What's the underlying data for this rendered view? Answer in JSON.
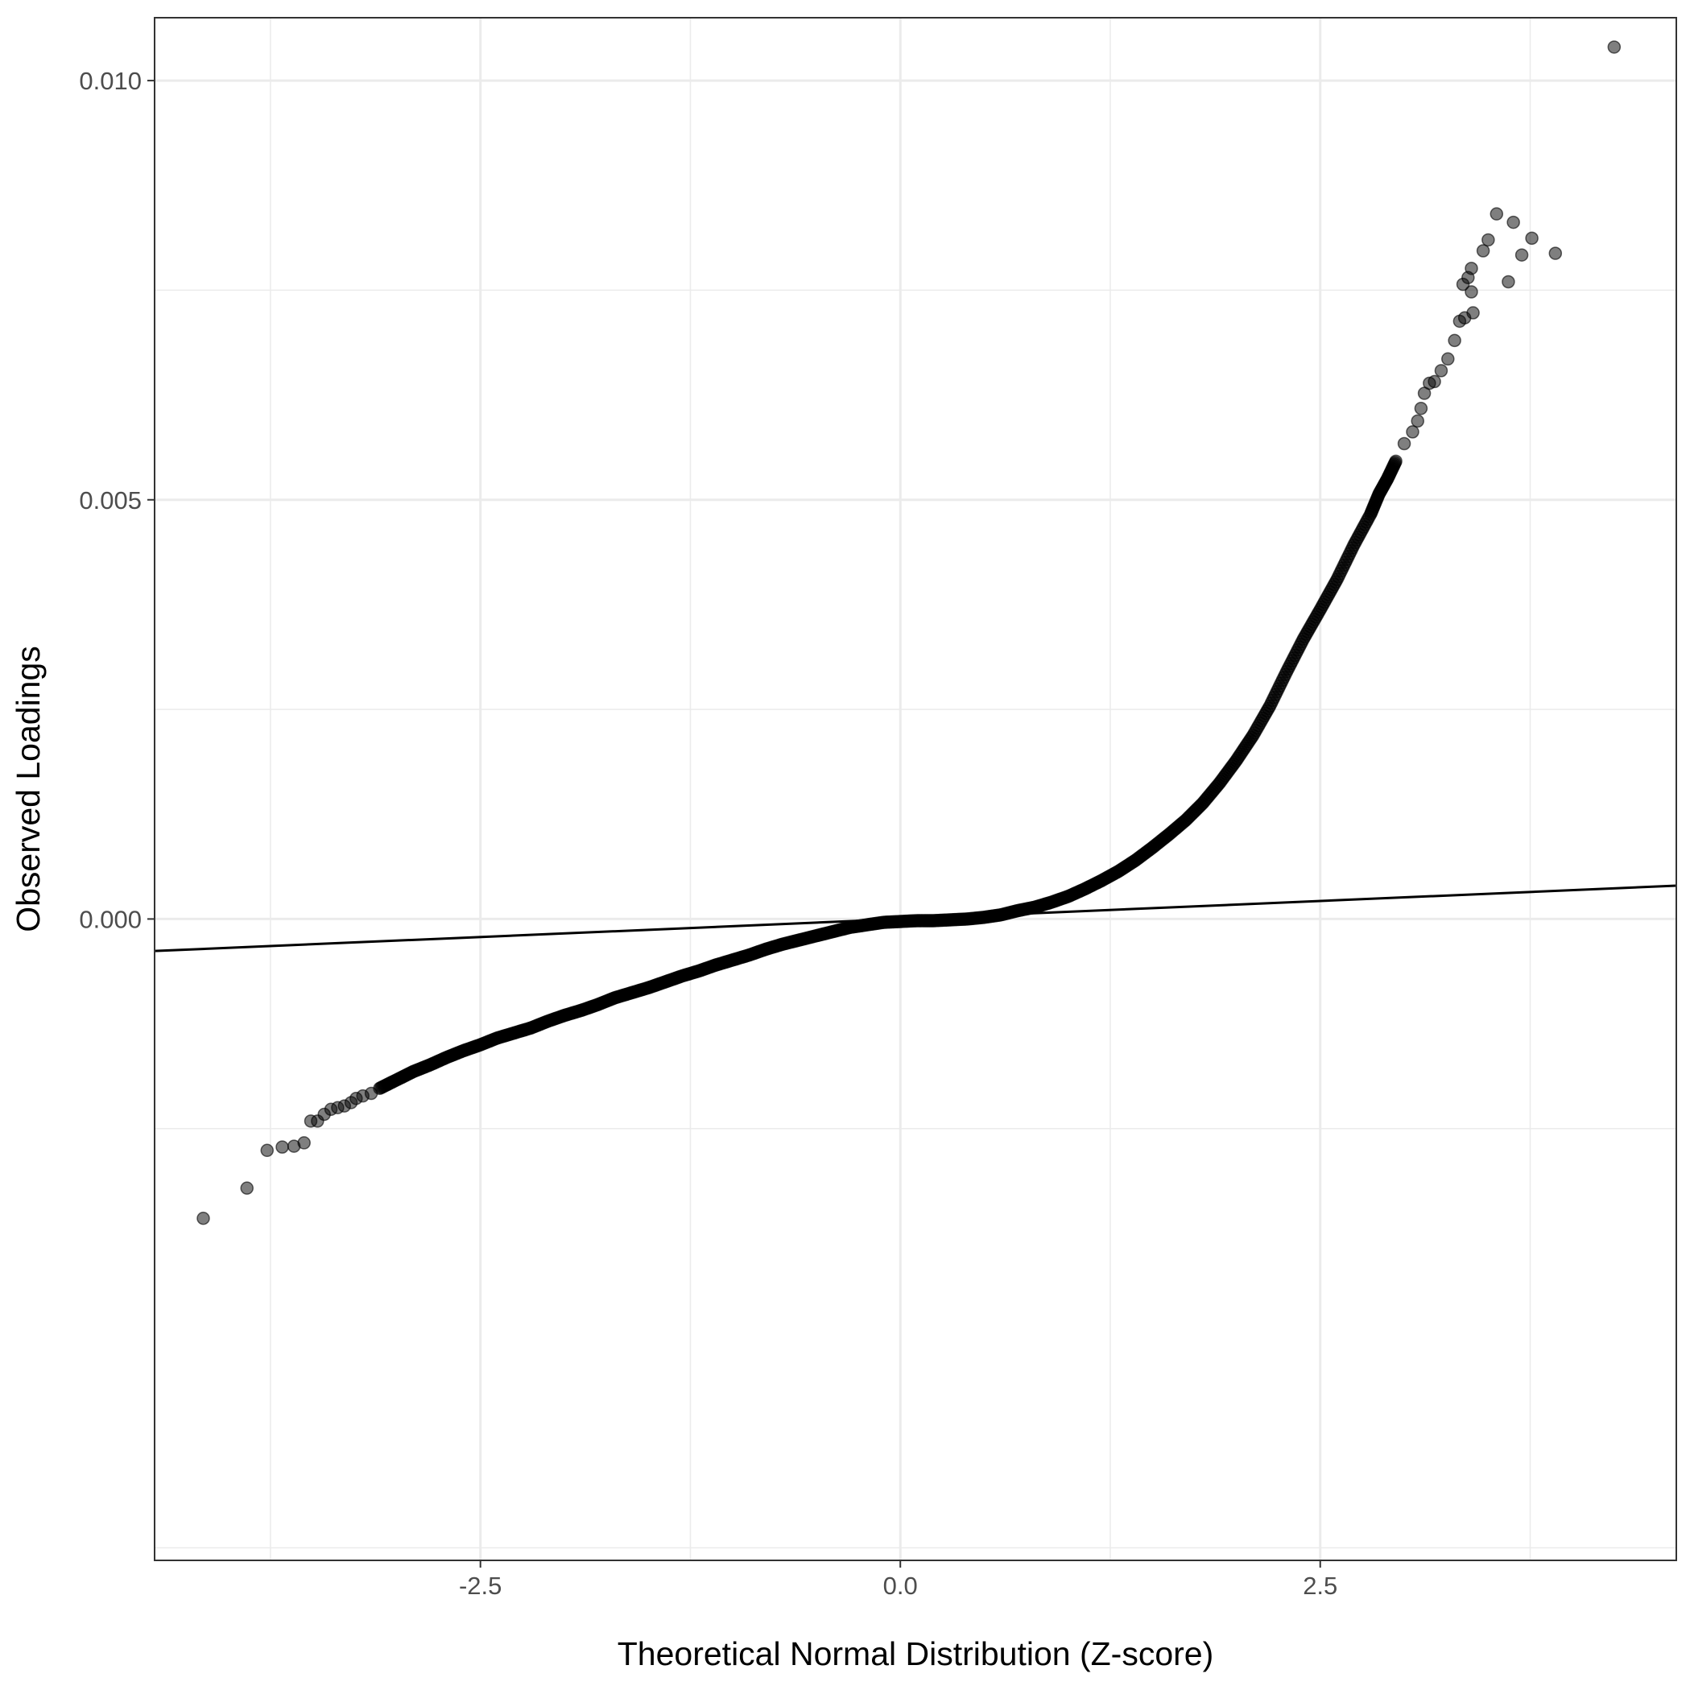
{
  "chart_data": {
    "type": "scatter",
    "title": "",
    "xlabel": "Theoretical Normal Distribution (Z-score)",
    "ylabel": "Observed Loadings",
    "xlim": [
      -4.44,
      4.62
    ],
    "ylim": [
      -0.00765,
      0.01075
    ],
    "x_ticks": [
      {
        "value": -2.5,
        "label": "-2.5"
      },
      {
        "value": 0.0,
        "label": "0.0"
      },
      {
        "value": 2.5,
        "label": "2.5"
      }
    ],
    "y_ticks": [
      {
        "value": 0.0,
        "label": "0.000"
      },
      {
        "value": 0.005,
        "label": "0.005"
      },
      {
        "value": 0.01,
        "label": "0.010"
      }
    ],
    "grid": true,
    "legend": "none",
    "reference_line": {
      "intercept": 0.0,
      "slope": 8.6e-05
    },
    "colors": {
      "points": "#000000",
      "point_opacity": 0.5,
      "line": "#000000",
      "grid": "#ebebeb",
      "panel_border": "#333333"
    },
    "series": [
      {
        "points": [
          [
            -4.15,
            -0.00357
          ],
          [
            -3.89,
            -0.00321
          ],
          [
            -3.77,
            -0.00276
          ],
          [
            -3.68,
            -0.00272
          ],
          [
            -3.61,
            -0.00271
          ],
          [
            -3.55,
            -0.00267
          ],
          [
            -3.51,
            -0.00241
          ],
          [
            -3.47,
            -0.00241
          ],
          [
            -3.43,
            -0.00233
          ],
          [
            -3.39,
            -0.00227
          ],
          [
            -3.35,
            -0.00225
          ],
          [
            -3.31,
            -0.00223
          ],
          [
            -3.27,
            -0.00219
          ],
          [
            -3.24,
            -0.00214
          ],
          [
            -3.2,
            -0.00211
          ],
          [
            -3.15,
            -0.00208
          ],
          [
            -3.1,
            -0.00202
          ],
          [
            -3.0,
            -0.00192
          ],
          [
            -2.9,
            -0.00182
          ],
          [
            -2.8,
            -0.00174
          ],
          [
            -2.7,
            -0.00165
          ],
          [
            -2.6,
            -0.00157
          ],
          [
            -2.5,
            -0.0015
          ],
          [
            -2.4,
            -0.00142
          ],
          [
            -2.3,
            -0.00136
          ],
          [
            -2.2,
            -0.0013
          ],
          [
            -2.1,
            -0.00122
          ],
          [
            -2.0,
            -0.00115
          ],
          [
            -1.9,
            -0.00109
          ],
          [
            -1.8,
            -0.00102
          ],
          [
            -1.7,
            -0.00094
          ],
          [
            -1.6,
            -0.00088
          ],
          [
            -1.5,
            -0.00082
          ],
          [
            -1.4,
            -0.00075
          ],
          [
            -1.3,
            -0.00068
          ],
          [
            -1.2,
            -0.00062
          ],
          [
            -1.1,
            -0.00055
          ],
          [
            -1.0,
            -0.00049
          ],
          [
            -0.9,
            -0.00043
          ],
          [
            -0.8,
            -0.00036
          ],
          [
            -0.7,
            -0.0003
          ],
          [
            -0.6,
            -0.00025
          ],
          [
            -0.5,
            -0.0002
          ],
          [
            -0.4,
            -0.00015
          ],
          [
            -0.3,
            -0.0001
          ],
          [
            -0.2,
            -7e-05
          ],
          [
            -0.1,
            -4e-05
          ],
          [
            0.0,
            -3e-05
          ],
          [
            0.1,
            -2e-05
          ],
          [
            0.2,
            -2e-05
          ],
          [
            0.3,
            -1e-05
          ],
          [
            0.4,
            0.0
          ],
          [
            0.5,
            2e-05
          ],
          [
            0.6,
            5e-05
          ],
          [
            0.7,
            0.0001
          ],
          [
            0.8,
            0.00014
          ],
          [
            0.9,
            0.0002
          ],
          [
            1.0,
            0.00027
          ],
          [
            1.1,
            0.00036
          ],
          [
            1.2,
            0.00046
          ],
          [
            1.3,
            0.00057
          ],
          [
            1.4,
            0.0007
          ],
          [
            1.5,
            0.00085
          ],
          [
            1.6,
            0.00101
          ],
          [
            1.7,
            0.00118
          ],
          [
            1.8,
            0.00138
          ],
          [
            1.9,
            0.00162
          ],
          [
            2.0,
            0.00189
          ],
          [
            2.1,
            0.00219
          ],
          [
            2.2,
            0.00254
          ],
          [
            2.3,
            0.00295
          ],
          [
            2.4,
            0.00334
          ],
          [
            2.5,
            0.00369
          ],
          [
            2.6,
            0.00405
          ],
          [
            2.7,
            0.00446
          ],
          [
            2.8,
            0.00483
          ],
          [
            2.85,
            0.00507
          ],
          [
            2.9,
            0.00525
          ],
          [
            2.95,
            0.00546
          ],
          [
            3.0,
            0.00567
          ],
          [
            3.05,
            0.00581
          ],
          [
            3.08,
            0.00594
          ],
          [
            3.1,
            0.00609
          ],
          [
            3.12,
            0.00627
          ],
          [
            3.15,
            0.00639
          ],
          [
            3.18,
            0.00641
          ],
          [
            3.22,
            0.00654
          ],
          [
            3.26,
            0.00668
          ],
          [
            3.3,
            0.0069
          ],
          [
            3.33,
            0.00713
          ],
          [
            3.36,
            0.00717
          ],
          [
            3.41,
            0.00723
          ],
          [
            3.4,
            0.00748
          ],
          [
            3.35,
            0.00757
          ],
          [
            3.38,
            0.00765
          ],
          [
            3.4,
            0.00776
          ],
          [
            3.47,
            0.00797
          ],
          [
            3.5,
            0.0081
          ],
          [
            3.55,
            0.00841
          ],
          [
            3.65,
            0.00831
          ],
          [
            3.76,
            0.00812
          ],
          [
            3.7,
            0.00792
          ],
          [
            3.62,
            0.0076
          ],
          [
            3.9,
            0.00794
          ],
          [
            4.25,
            0.0104
          ]
        ]
      }
    ]
  }
}
